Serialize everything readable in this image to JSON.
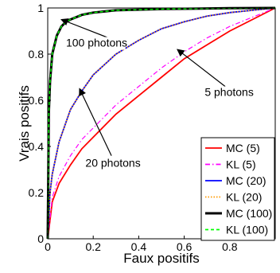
{
  "chart_data": {
    "type": "line",
    "xlabel": "Faux positifs",
    "ylabel": "Vrais positifs",
    "xlim": [
      0,
      1
    ],
    "ylim": [
      0,
      1
    ],
    "x_ticks": [
      "0",
      "0.2",
      "0.4",
      "0.6",
      "0.8"
    ],
    "y_ticks": [
      "0",
      "0.2",
      "0.4",
      "0.6",
      "0.8",
      "1"
    ],
    "legend_position": "bottom-right",
    "series": [
      {
        "name": "MC (5)",
        "color": "#ff0000",
        "dash": "solid",
        "x": [
          0,
          0.02,
          0.05,
          0.1,
          0.15,
          0.2,
          0.3,
          0.4,
          0.5,
          0.6,
          0.7,
          0.8,
          0.9,
          1.0
        ],
        "y": [
          0,
          0.16,
          0.24,
          0.32,
          0.39,
          0.44,
          0.54,
          0.62,
          0.7,
          0.78,
          0.84,
          0.9,
          0.95,
          1.0
        ]
      },
      {
        "name": "KL (5)",
        "color": "#ff00ff",
        "dash": "dashdot",
        "x": [
          0,
          0.02,
          0.05,
          0.1,
          0.15,
          0.2,
          0.3,
          0.4,
          0.5,
          0.6,
          0.7,
          0.8,
          0.9,
          1.0
        ],
        "y": [
          0,
          0.18,
          0.27,
          0.36,
          0.43,
          0.48,
          0.58,
          0.66,
          0.74,
          0.81,
          0.87,
          0.92,
          0.96,
          1.0
        ]
      },
      {
        "name": "MC (20)",
        "color": "#0000ff",
        "dash": "solid",
        "x": [
          0,
          0.01,
          0.02,
          0.05,
          0.1,
          0.15,
          0.2,
          0.3,
          0.4,
          0.5,
          0.6,
          0.7,
          0.8,
          0.9,
          1.0
        ],
        "y": [
          0,
          0.2,
          0.28,
          0.42,
          0.56,
          0.64,
          0.71,
          0.8,
          0.86,
          0.91,
          0.94,
          0.965,
          0.98,
          0.99,
          1.0
        ]
      },
      {
        "name": "KL (20)",
        "color": "#ff9900",
        "dash": "dotted",
        "x": [
          0,
          0.01,
          0.02,
          0.05,
          0.1,
          0.15,
          0.2,
          0.3,
          0.4,
          0.5,
          0.6,
          0.7,
          0.8,
          0.9,
          1.0
        ],
        "y": [
          0,
          0.2,
          0.28,
          0.42,
          0.56,
          0.64,
          0.71,
          0.8,
          0.86,
          0.91,
          0.94,
          0.965,
          0.98,
          0.99,
          1.0
        ]
      },
      {
        "name": "MC (100)",
        "color": "#000000",
        "dash": "solid",
        "x": [
          0,
          0.005,
          0.01,
          0.02,
          0.04,
          0.06,
          0.08,
          0.1,
          0.15,
          0.2,
          0.3,
          0.5,
          0.8,
          1.0
        ],
        "y": [
          0,
          0.55,
          0.68,
          0.8,
          0.88,
          0.92,
          0.94,
          0.95,
          0.97,
          0.98,
          0.99,
          0.995,
          0.999,
          1.0
        ]
      },
      {
        "name": "KL (100)",
        "color": "#00ff00",
        "dash": "dashed",
        "x": [
          0,
          0.005,
          0.01,
          0.02,
          0.04,
          0.06,
          0.08,
          0.1,
          0.15,
          0.2,
          0.3,
          0.5,
          0.8,
          1.0
        ],
        "y": [
          0,
          0.55,
          0.68,
          0.8,
          0.88,
          0.92,
          0.94,
          0.95,
          0.97,
          0.98,
          0.99,
          0.995,
          0.999,
          1.0
        ]
      }
    ],
    "annotations": [
      {
        "text": "100 photons",
        "from": [
          0.32,
          0.85
        ],
        "to": [
          0.06,
          0.95
        ]
      },
      {
        "text": "5 photons",
        "from": [
          0.78,
          0.66
        ],
        "to": [
          0.57,
          0.82
        ]
      },
      {
        "text": "20 photons",
        "from": [
          0.28,
          0.36
        ],
        "to": [
          0.14,
          0.65
        ]
      }
    ]
  }
}
